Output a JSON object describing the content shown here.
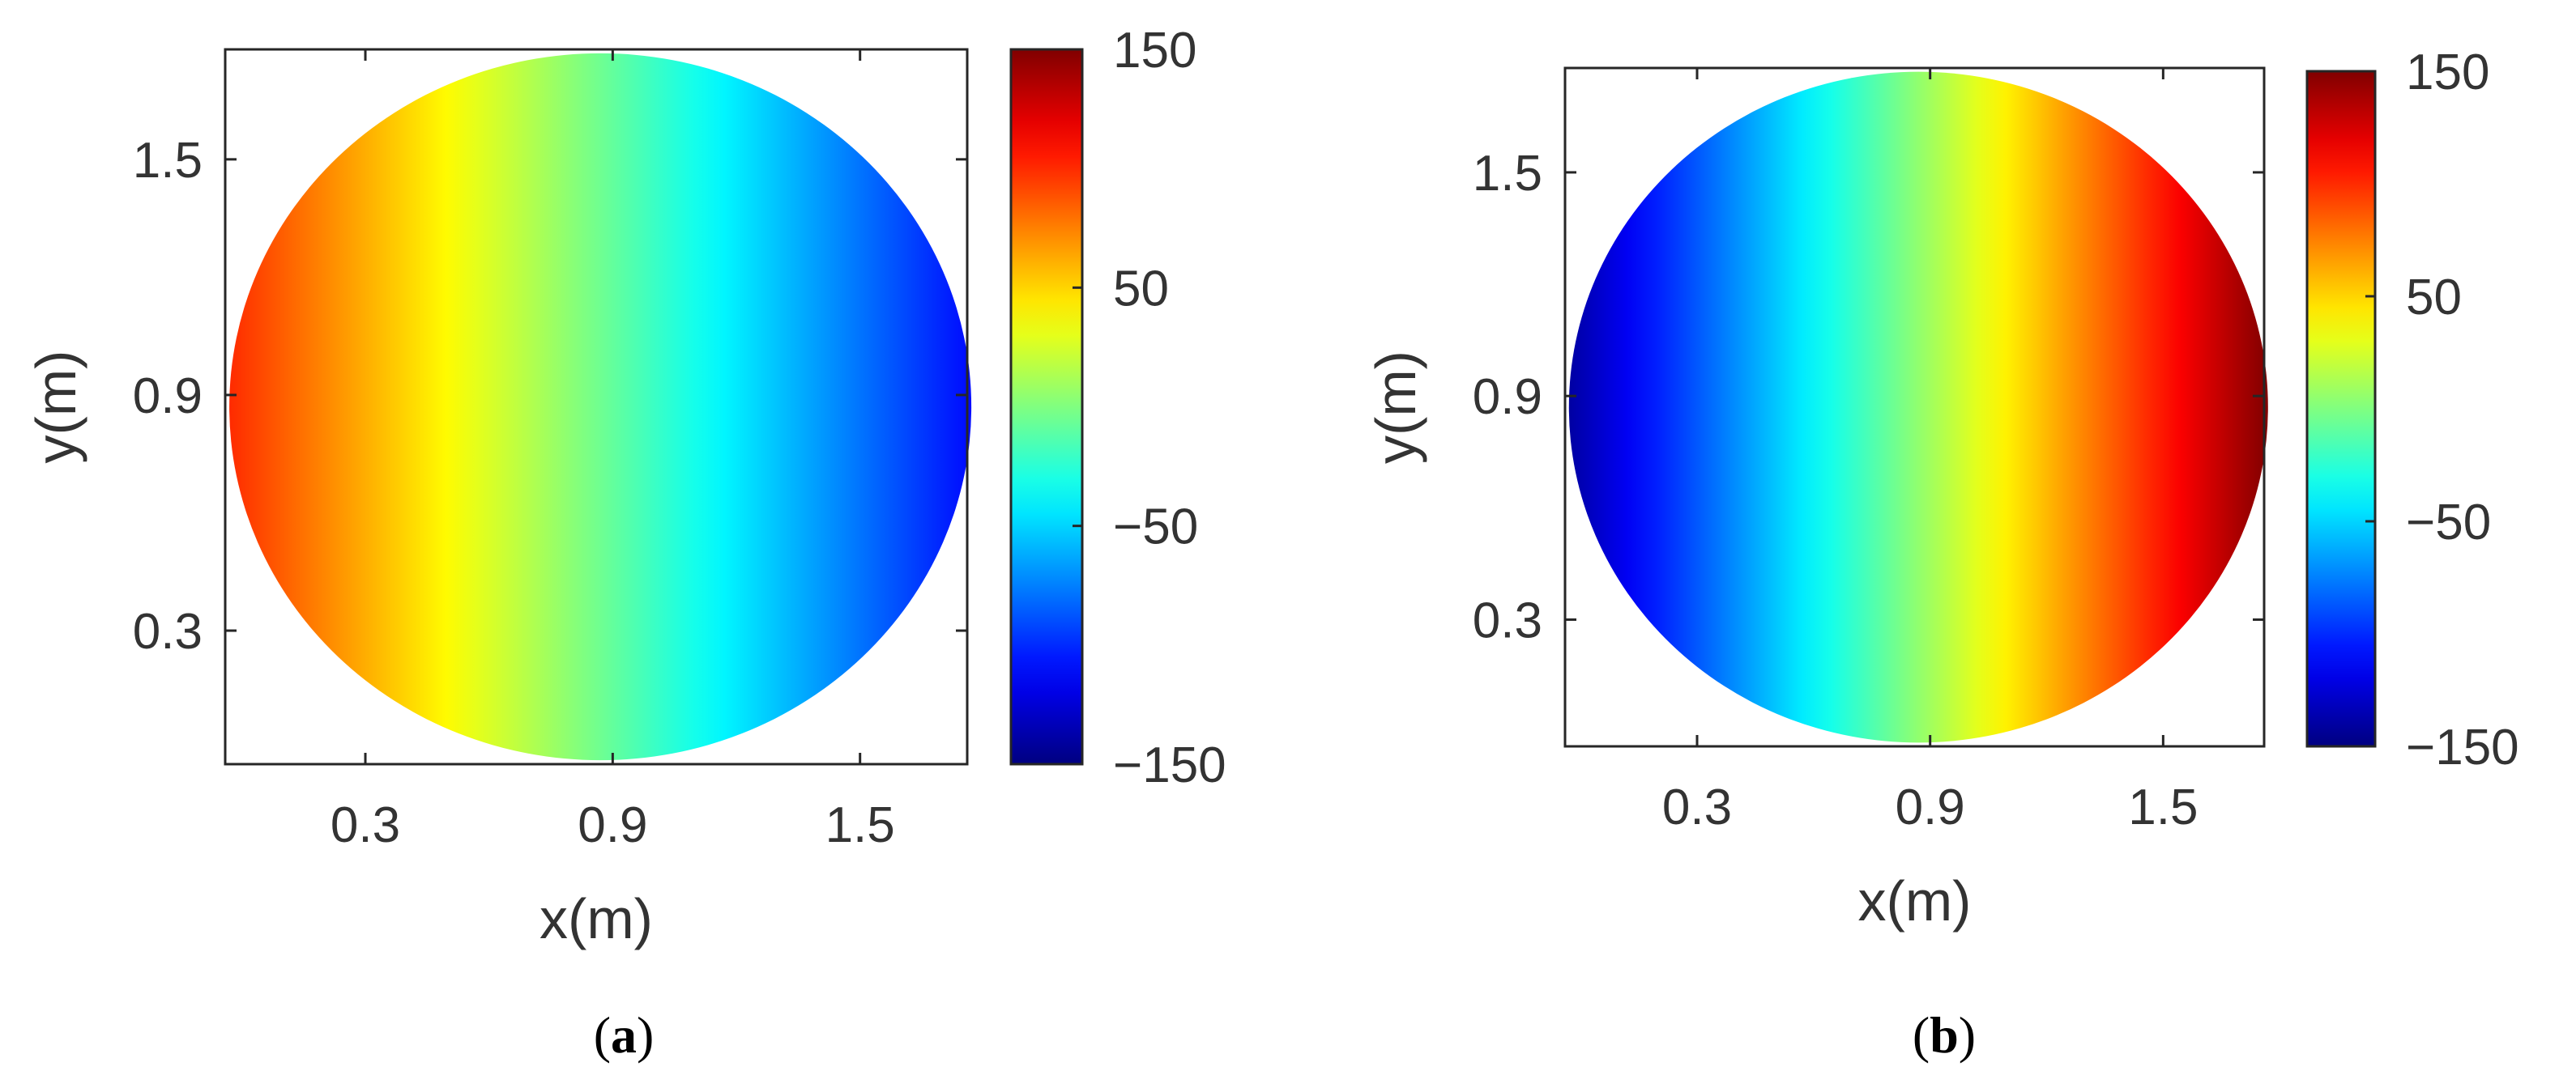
{
  "chart_data": [
    {
      "type": "heatmap",
      "panel_label": "a",
      "xlabel": "x(m)",
      "ylabel": "y(m)",
      "x_ticks": [
        "0.3",
        "0.9",
        "1.5"
      ],
      "y_ticks": [
        "1.5",
        "0.9",
        "0.3"
      ],
      "xlim": [
        -0.04,
        1.76
      ],
      "ylim": [
        -0.04,
        1.78
      ],
      "colorbar": {
        "range": [
          -150,
          150
        ],
        "ticks": [
          "150",
          "50",
          "−50",
          "−150"
        ],
        "colormap": "jet"
      },
      "field": {
        "shape": "circle",
        "center": [
          0.87,
          0.87
        ],
        "radius": 0.9,
        "varies_along": "x",
        "values_left_to_right": [
          100,
          -110
        ],
        "note": "phase decreasing linearly from left (red) to right (blue)"
      }
    },
    {
      "type": "heatmap",
      "panel_label": "b",
      "xlabel": "x(m)",
      "ylabel": "y(m)",
      "x_ticks": [
        "0.3",
        "0.9",
        "1.5"
      ],
      "y_ticks": [
        "1.5",
        "0.9",
        "0.3"
      ],
      "xlim": [
        -0.04,
        1.76
      ],
      "ylim": [
        -0.04,
        1.78
      ],
      "colorbar": {
        "range": [
          -150,
          150
        ],
        "ticks": [
          "150",
          "50",
          "−50",
          "−150"
        ],
        "colormap": "jet"
      },
      "field": {
        "shape": "circle",
        "center": [
          0.87,
          0.87
        ],
        "radius": 0.9,
        "varies_along": "x",
        "values_left_to_right": [
          -140,
          150
        ],
        "note": "phase increasing linearly from left (dark blue) to right (dark red)"
      }
    }
  ]
}
